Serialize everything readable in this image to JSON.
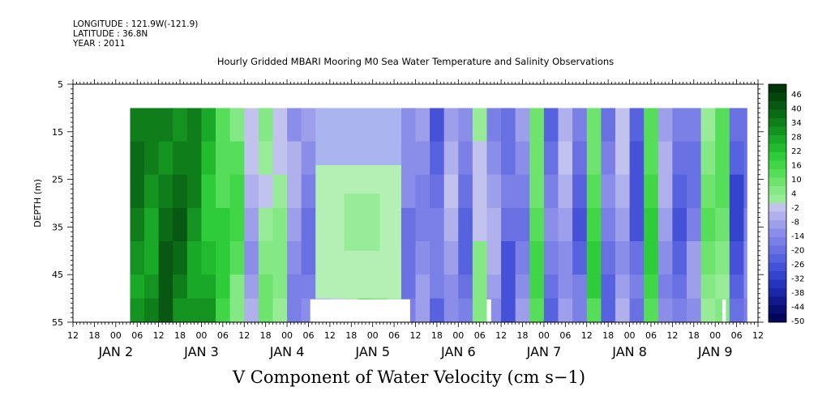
{
  "header": {
    "longitude": "LONGITUDE : 121.9W(-121.9)",
    "latitude": "LATITUDE : 36.8N",
    "year": "YEAR : 2011",
    "title": "Hourly Gridded MBARI Mooring M0 Sea Water Temperature and Salinity Observations"
  },
  "bottom_title": "V Component of Water Velocity (cm s−1)",
  "chart_data": {
    "type": "heatmap",
    "title": "Hourly Gridded MBARI Mooring M0 Sea Water Temperature and Salinity Observations",
    "subtitle": "V Component of Water Velocity (cm s−1)",
    "ylabel": "DEPTH (m)",
    "xlabel": "",
    "ylim": [
      55,
      5
    ],
    "yticks": [
      5,
      15,
      25,
      35,
      45,
      55
    ],
    "xlim": [
      "2011-01-01T12:00",
      "2011-01-09T12:00"
    ],
    "x_hour_labels": [
      "12",
      "18",
      "00",
      "06",
      "12",
      "18",
      "00",
      "06",
      "12",
      "18",
      "00",
      "06",
      "12",
      "18",
      "00",
      "06",
      "12",
      "18",
      "00",
      "06",
      "12",
      "18",
      "00",
      "06",
      "12",
      "18",
      "00",
      "06",
      "12",
      "18",
      "00",
      "06",
      "12"
    ],
    "x_day_labels": [
      {
        "label": "JAN  2",
        "time": "2011-01-02T00:00"
      },
      {
        "label": "JAN  3",
        "time": "2011-01-03T00:00"
      },
      {
        "label": "JAN  4",
        "time": "2011-01-04T00:00"
      },
      {
        "label": "JAN  5",
        "time": "2011-01-05T00:00"
      },
      {
        "label": "JAN  6",
        "time": "2011-01-06T00:00"
      },
      {
        "label": "JAN  7",
        "time": "2011-01-07T00:00"
      },
      {
        "label": "JAN  8",
        "time": "2011-01-08T00:00"
      },
      {
        "label": "JAN  9",
        "time": "2011-01-09T00:00"
      }
    ],
    "colorbar": {
      "labels": [
        "46",
        "40",
        "34",
        "28",
        "22",
        "16",
        "10",
        "4",
        "-2",
        "-8",
        "-14",
        "-20",
        "-26",
        "-32",
        "-38",
        "-44",
        "-50"
      ],
      "range": [
        -50,
        50
      ],
      "step": 3,
      "colors_positive": [
        "#98ec98",
        "#84e884",
        "#6ee46e",
        "#56de5a",
        "#40d648",
        "#2ecc3a",
        "#22bb30",
        "#1aa828",
        "#149320",
        "#0f7e1a",
        "#0b6a15",
        "#085712",
        "#05450e",
        "#03340a"
      ],
      "colors_negative": [
        "#c2c2ee",
        "#b0b0ec",
        "#9e9fea",
        "#8b8ee8",
        "#7a80e6",
        "#6870e2",
        "#5662de",
        "#4552d8",
        "#3443cc",
        "#2534bb",
        "#1a27a6",
        "#11198d",
        "#0a0f72",
        "#040657"
      ]
    },
    "data_start_hour": 16,
    "data_end_hour": 189,
    "data_top_depth": 10,
    "data_bottom_depth": 55,
    "columns": [
      {
        "x_hour": 16,
        "v": 32
      },
      {
        "x_hour": 20,
        "v": 30
      },
      {
        "x_hour": 24,
        "v": 36
      },
      {
        "x_hour": 28,
        "v": 34
      },
      {
        "x_hour": 32,
        "v": 30
      },
      {
        "x_hour": 36,
        "v": 24
      },
      {
        "x_hour": 40,
        "v": 16
      },
      {
        "x_hour": 44,
        "v": 10
      },
      {
        "x_hour": 48,
        "v": -6
      },
      {
        "x_hour": 52,
        "v": 4
      },
      {
        "x_hour": 56,
        "v": 2
      },
      {
        "x_hour": 60,
        "v": -10
      },
      {
        "x_hour": 64,
        "v": -14
      },
      {
        "x_hour": 68,
        "v": -8
      },
      {
        "x_hour": 72,
        "v": 2
      },
      {
        "x_hour": 76,
        "v": 4
      },
      {
        "x_hour": 80,
        "v": 6
      },
      {
        "x_hour": 84,
        "v": 8
      },
      {
        "x_hour": 88,
        "v": 6
      },
      {
        "x_hour": 92,
        "v": -16
      },
      {
        "x_hour": 96,
        "v": -12
      },
      {
        "x_hour": 100,
        "v": -20
      },
      {
        "x_hour": 104,
        "v": -8
      },
      {
        "x_hour": 108,
        "v": -18
      },
      {
        "x_hour": 112,
        "v": 2
      },
      {
        "x_hour": 116,
        "v": -10
      },
      {
        "x_hour": 120,
        "v": -22
      },
      {
        "x_hour": 124,
        "v": -14
      },
      {
        "x_hour": 128,
        "v": 12
      },
      {
        "x_hour": 132,
        "v": -18
      },
      {
        "x_hour": 136,
        "v": -8
      },
      {
        "x_hour": 140,
        "v": -20
      },
      {
        "x_hour": 144,
        "v": 14
      },
      {
        "x_hour": 148,
        "v": -18
      },
      {
        "x_hour": 152,
        "v": -6
      },
      {
        "x_hour": 156,
        "v": -22
      },
      {
        "x_hour": 160,
        "v": 16
      },
      {
        "x_hour": 164,
        "v": -10
      },
      {
        "x_hour": 168,
        "v": -20
      },
      {
        "x_hour": 172,
        "v": -14
      },
      {
        "x_hour": 176,
        "v": 6
      },
      {
        "x_hour": 180,
        "v": 8
      },
      {
        "x_hour": 184,
        "v": -24
      },
      {
        "x_hour": 188,
        "v": -16
      }
    ]
  }
}
